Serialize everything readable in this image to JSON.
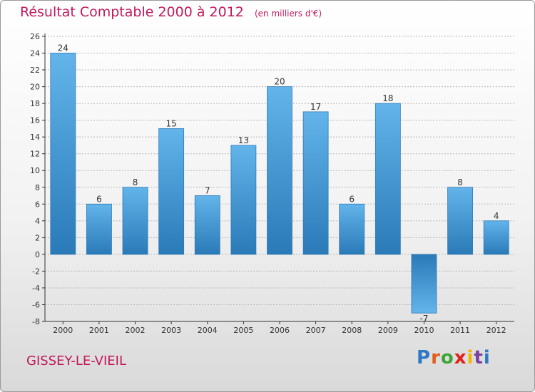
{
  "header": {
    "title": "Résultat Comptable 2000 à 2012",
    "unit": "(en milliers d'€)"
  },
  "footer": {
    "commune": "GISSEY-LE-VIEIL",
    "logo_letters": [
      "P",
      "r",
      "o",
      "x",
      "i",
      "t",
      "i"
    ],
    "logo_colors": [
      "#2f78c4",
      "#e25b1a",
      "#3aa535",
      "#e0231a",
      "#f2b600",
      "#7c3fa0",
      "#2f78c4"
    ]
  },
  "colors": {
    "title": "#c2185b",
    "bar_dark": "#2a7ab8",
    "bar_light": "#62b4ea",
    "grid": "#b8b8b8",
    "axis": "#333333"
  },
  "chart_data": {
    "type": "bar",
    "title": "Résultat Comptable 2000 à 2012",
    "ylabel": "en milliers d'€",
    "xlabel": "",
    "categories": [
      "2000",
      "2001",
      "2002",
      "2003",
      "2004",
      "2005",
      "2006",
      "2007",
      "2008",
      "2009",
      "2010",
      "2011",
      "2012"
    ],
    "values": [
      24,
      6,
      8,
      15,
      7,
      13,
      20,
      17,
      6,
      18,
      -7,
      8,
      4
    ],
    "ylim": [
      -8,
      26
    ],
    "yticks": [
      26,
      24,
      22,
      20,
      18,
      16,
      14,
      12,
      10,
      8,
      6,
      4,
      2,
      0,
      -2,
      -4,
      -6,
      -8
    ],
    "grid": true,
    "data_labels": true
  }
}
